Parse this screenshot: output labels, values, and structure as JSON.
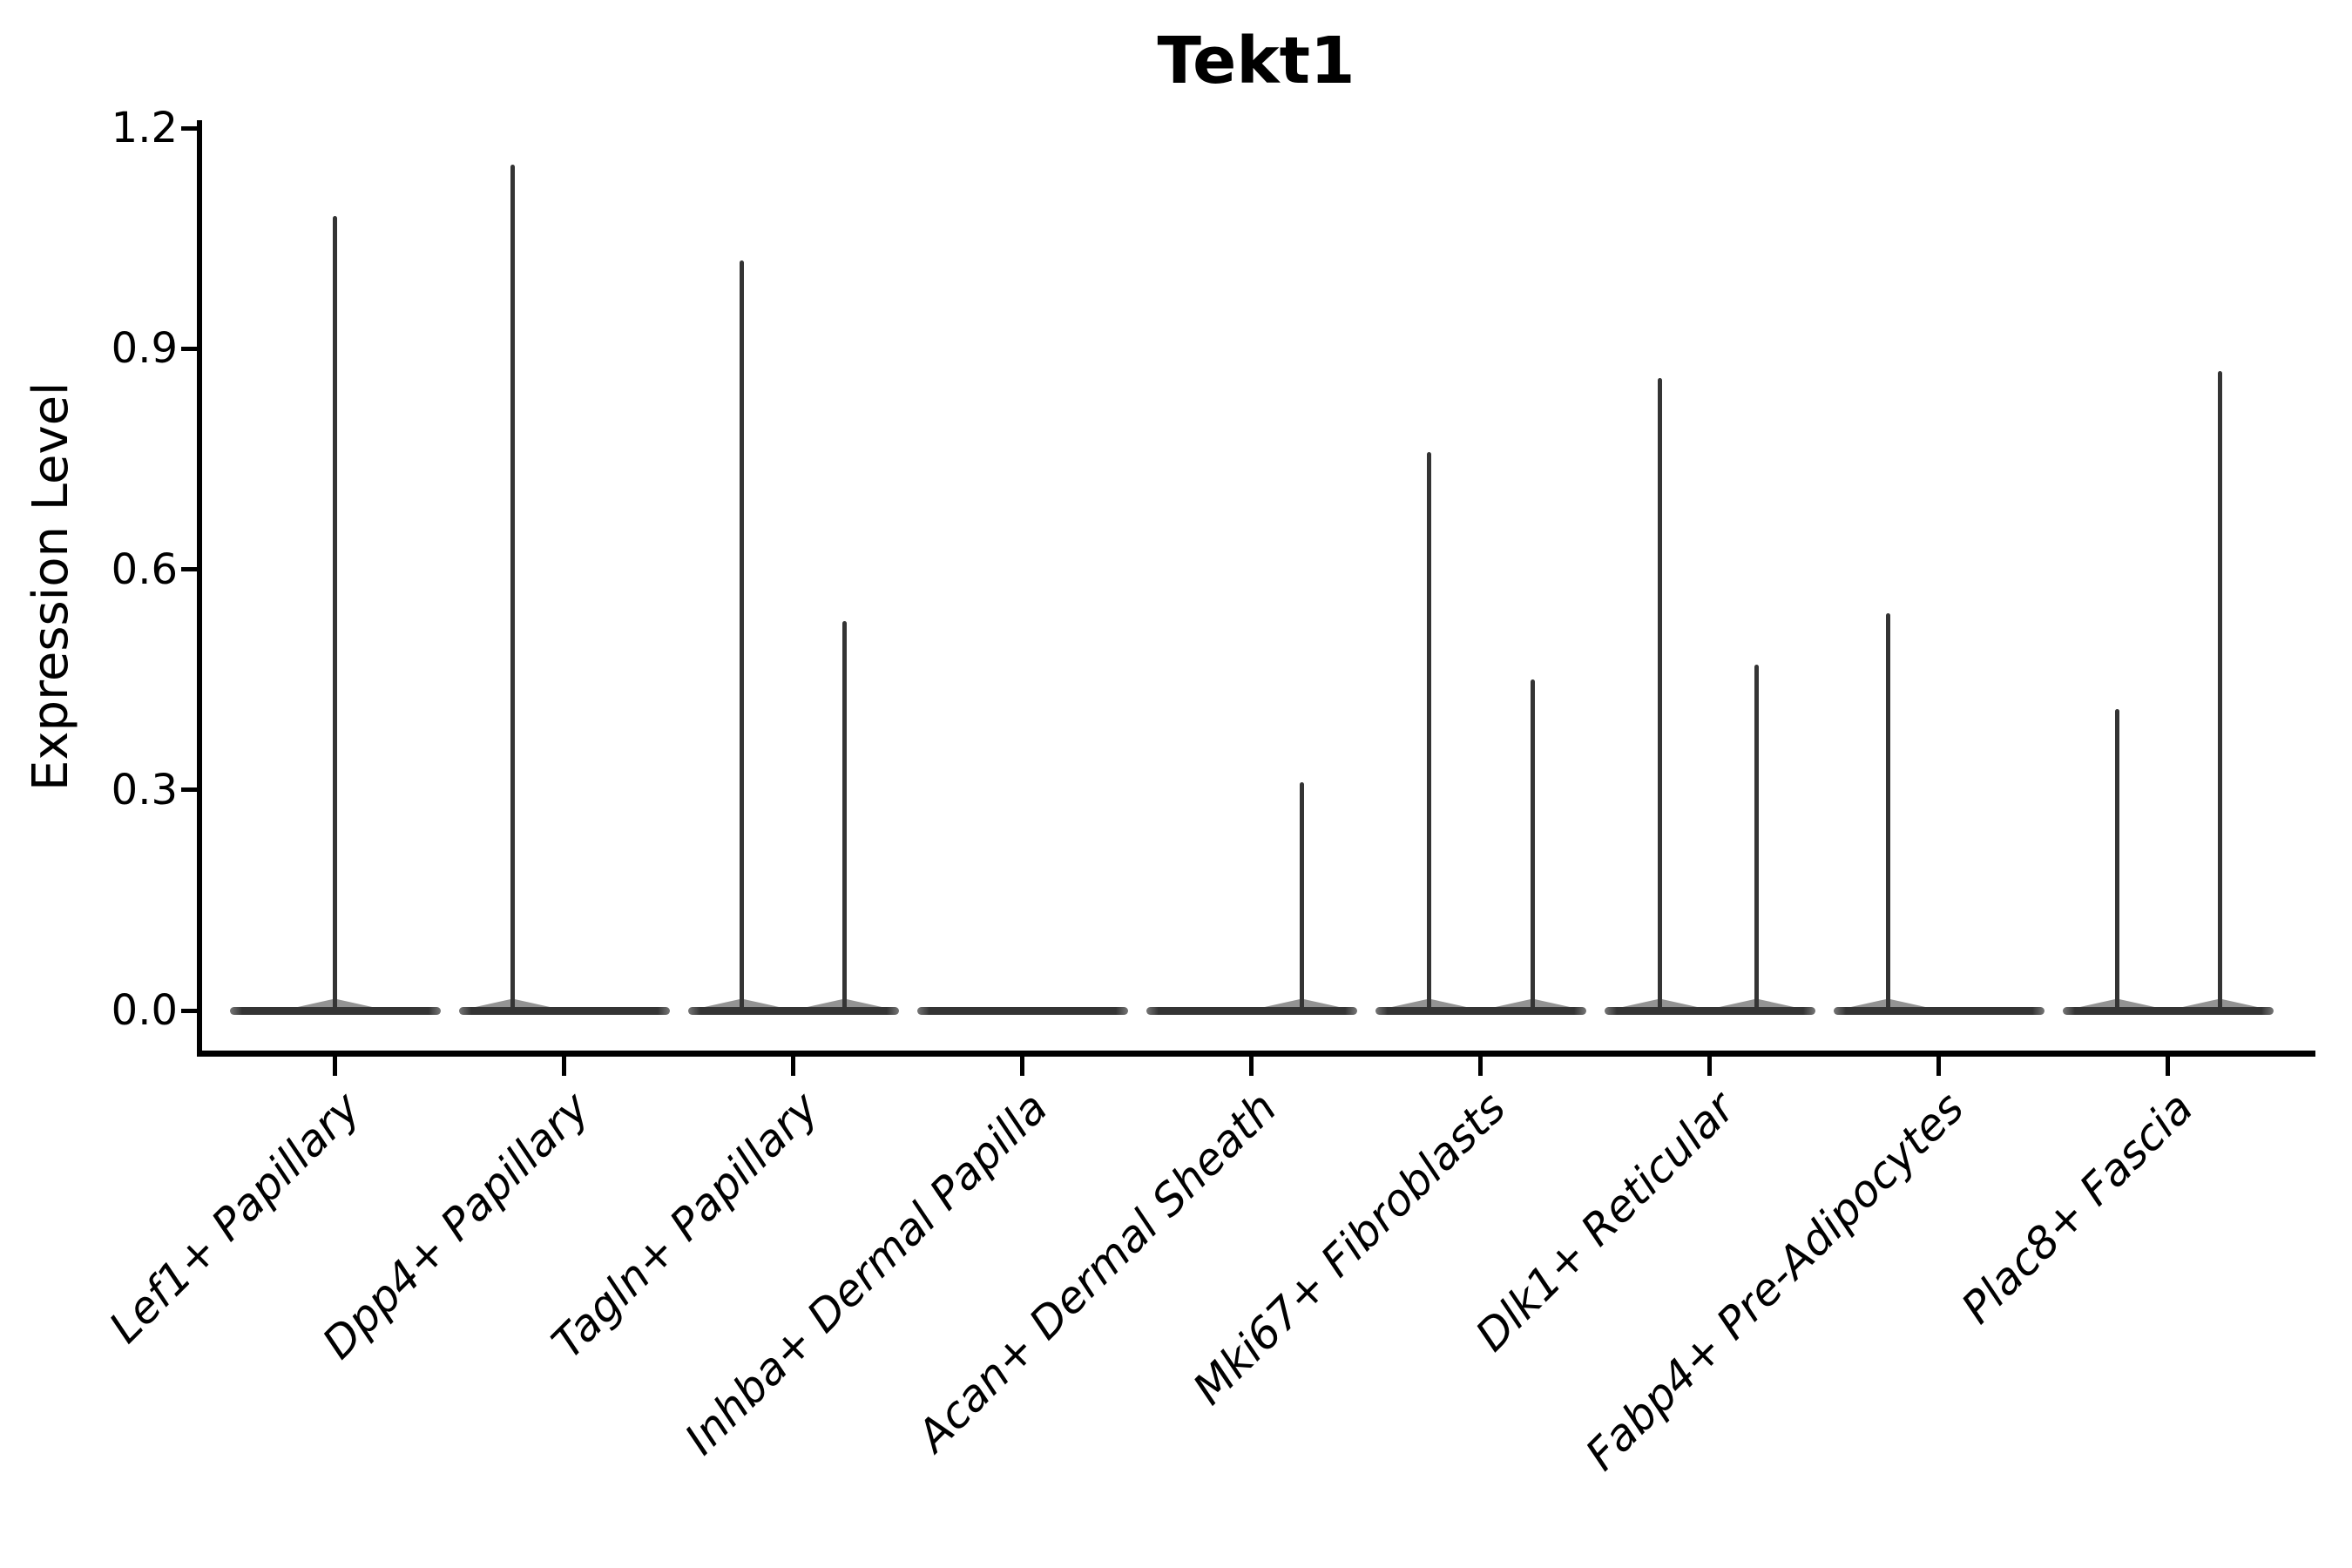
{
  "chart_data": {
    "type": "violin",
    "title": "Tekt1",
    "xlabel": "",
    "ylabel": "Expression Level",
    "ylim": [
      0.0,
      1.2
    ],
    "yticks": [
      {
        "value": 0.0,
        "label": "0.0"
      },
      {
        "value": 0.3,
        "label": "0.3"
      },
      {
        "value": 0.6,
        "label": "0.6"
      },
      {
        "value": 0.9,
        "label": "0.9"
      },
      {
        "value": 1.2,
        "label": "1.2"
      }
    ],
    "grid": false,
    "legend": "none",
    "categories": [
      "Lef1+ Papillary",
      "Dpp4+ Papillary",
      "Tagln+ Papillary",
      "Inhba+ Dermal Papilla",
      "Acan+ Dermal Sheath",
      "Mki67+ Fibroblasts",
      "Dlk1+ Reticular",
      "Fabp4+ Pre-Adipocytes",
      "Plac8+ Fascia"
    ],
    "violins": [
      {
        "label": "Lef1+ Papillary",
        "base_value": 0.0,
        "spikes": [
          {
            "dx": 0,
            "max": 1.08
          }
        ]
      },
      {
        "label": "Dpp4+ Papillary",
        "base_value": 0.0,
        "spikes": [
          {
            "dx": -59,
            "max": 1.15
          }
        ]
      },
      {
        "label": "Tagln+ Papillary",
        "base_value": 0.0,
        "spikes": [
          {
            "dx": -59,
            "max": 1.02
          },
          {
            "dx": 59,
            "max": 0.53
          }
        ]
      },
      {
        "label": "Inhba+ Dermal Papilla",
        "base_value": 0.0,
        "spikes": []
      },
      {
        "label": "Acan+ Dermal Sheath",
        "base_value": 0.0,
        "spikes": [
          {
            "dx": 58,
            "max": 0.31
          }
        ]
      },
      {
        "label": "Mki67+ Fibroblasts",
        "base_value": 0.0,
        "spikes": [
          {
            "dx": -59,
            "max": 0.76
          },
          {
            "dx": 60,
            "max": 0.45
          }
        ]
      },
      {
        "label": "Dlk1+ Reticular",
        "base_value": 0.0,
        "spikes": [
          {
            "dx": -57,
            "max": 0.86
          },
          {
            "dx": 54,
            "max": 0.47
          }
        ]
      },
      {
        "label": "Fabp4+ Pre-Adipocytes",
        "base_value": 0.0,
        "spikes": [
          {
            "dx": -58,
            "max": 0.54
          }
        ]
      },
      {
        "label": "Plac8+ Fascia",
        "base_value": 0.0,
        "spikes": [
          {
            "dx": -58,
            "max": 0.41
          },
          {
            "dx": 60,
            "max": 0.87
          }
        ]
      }
    ]
  },
  "colors": {
    "violin": "#343434",
    "axis": "#000000",
    "text": "#000000",
    "background": "#ffffff"
  }
}
